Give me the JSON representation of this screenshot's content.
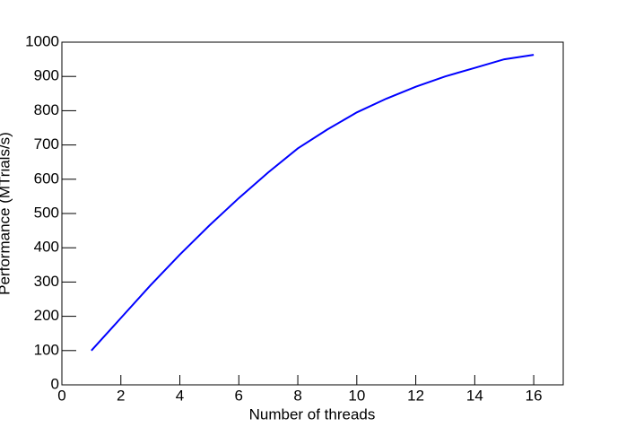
{
  "chart_data": {
    "type": "line",
    "x_label": "Number of threads",
    "y_label": "Performance (MTrials/s)",
    "x": [
      1,
      2,
      3,
      4,
      5,
      6,
      7,
      8,
      9,
      10,
      11,
      12,
      13,
      14,
      15,
      16
    ],
    "series": [
      {
        "name": "Performance",
        "color": "#0000ff",
        "values": [
          100,
          195,
          290,
          380,
          465,
          545,
          620,
          690,
          745,
          795,
          835,
          870,
          900,
          925,
          950,
          963
        ]
      }
    ],
    "xlim": [
      0,
      17
    ],
    "ylim": [
      0,
      1000
    ],
    "xticks": [
      0,
      2,
      4,
      6,
      8,
      10,
      12,
      14,
      16
    ],
    "yticks": [
      0,
      100,
      200,
      300,
      400,
      500,
      600,
      700,
      800,
      900,
      1000
    ]
  }
}
